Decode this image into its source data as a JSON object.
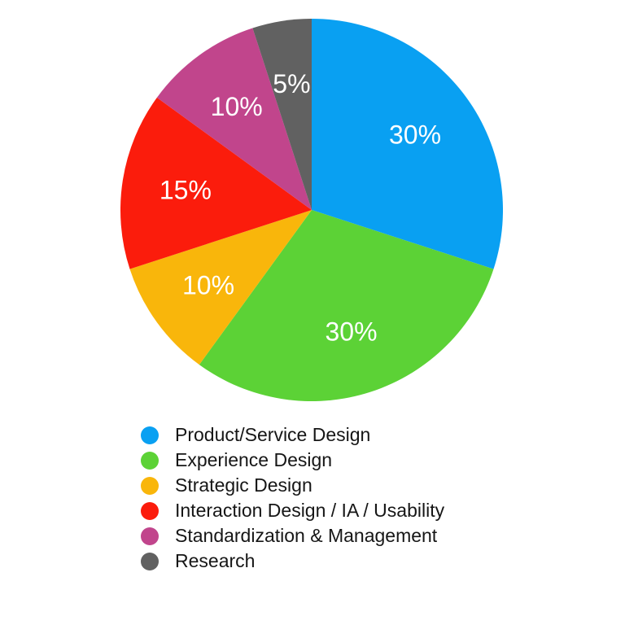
{
  "chart_data": {
    "type": "pie",
    "title": "",
    "direction": "clockwise",
    "start_angle_deg": 0,
    "legend_position": "bottom-left",
    "background_color": "#ffffff",
    "slice_label_color": "#ffffff",
    "legend_text_color": "#161616",
    "slices": [
      {
        "label": "Product/Service Design",
        "value": 30,
        "pct_label": "30%",
        "color": "#09A0F2"
      },
      {
        "label": "Experience Design",
        "value": 30,
        "pct_label": "30%",
        "color": "#5CD236"
      },
      {
        "label": "Strategic Design",
        "value": 10,
        "pct_label": "10%",
        "color": "#F9B60B"
      },
      {
        "label": "Interaction Design / IA / Usability",
        "value": 15,
        "pct_label": "15%",
        "color": "#FB1C0C"
      },
      {
        "label": "Standardization & Management",
        "value": 10,
        "pct_label": "10%",
        "color": "#C1458C"
      },
      {
        "label": "Research",
        "value": 5,
        "pct_label": "5%",
        "color": "#616161"
      }
    ]
  }
}
